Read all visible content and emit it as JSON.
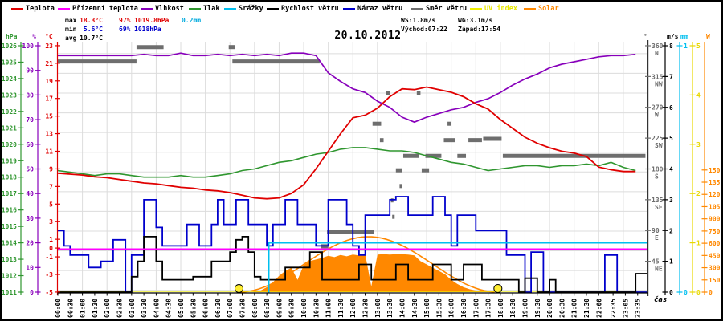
{
  "title": "20.10.2012",
  "legend": [
    {
      "label": "Teplota",
      "color": "#e00000",
      "label_color": "#000000"
    },
    {
      "label": "Přízemní teplota",
      "color": "#ff00ff",
      "label_color": "#000000"
    },
    {
      "label": "Vlhkost",
      "color": "#8800bb",
      "label_color": "#000000"
    },
    {
      "label": "Tlak",
      "color": "#2f962f",
      "label_color": "#000000"
    },
    {
      "label": "Srážky",
      "color": "#00bfef",
      "label_color": "#000000"
    },
    {
      "label": "Rychlost větru",
      "color": "#000000",
      "label_color": "#000000"
    },
    {
      "label": "Náraz větru",
      "color": "#0000cc",
      "label_color": "#000000"
    },
    {
      "label": "Směr větru",
      "color": "#6e6e6e",
      "label_color": "#000000"
    },
    {
      "label": "UV index",
      "color": "#f0f000",
      "label_color": "#e8e800"
    },
    {
      "label": "Solar",
      "color": "#ff8800",
      "label_color": "#ff8800"
    }
  ],
  "stats": {
    "max_label": "max",
    "max_temp": "18.3°C",
    "max_humidity": "97%",
    "max_pressure": "1019.8hPa",
    "max_precip": "0.2mm",
    "min_label": "min",
    "min_temp": "5.6°C",
    "min_humidity": "69%",
    "min_pressure": "1018hPa",
    "avg_label": "avg",
    "avg_temp": "10.7°C",
    "wind_speed_max": "WS:1.8m/s",
    "wind_gust_max": "WG:3.1m/s",
    "sunrise": "Východ:07:22",
    "sunset": "Západ:17:54"
  },
  "axes": {
    "pressure": {
      "unit": "hPa",
      "color": "#2f962f",
      "ticks": [
        1026,
        1025,
        1024,
        1023,
        1022,
        1021,
        1020,
        1019,
        1018,
        1017,
        1016,
        1015,
        1014,
        1013,
        1012,
        1011
      ]
    },
    "humidity": {
      "unit": "%",
      "color": "#8800bb",
      "ticks": [
        100,
        90,
        80,
        70,
        60,
        50,
        40,
        30,
        20,
        10,
        0
      ]
    },
    "temperature": {
      "unit": "°C",
      "color": "#e00000",
      "ticks": [
        23,
        21,
        19,
        17,
        15,
        13,
        11,
        9,
        7,
        5,
        3,
        1,
        0,
        -1,
        -3,
        -5
      ]
    },
    "direction": {
      "unit": "°",
      "color": "#6e6e6e",
      "ticks": [
        [
          360,
          "N"
        ],
        [
          315,
          "NW"
        ],
        [
          270,
          "W"
        ],
        [
          225,
          "SW"
        ],
        [
          180,
          "S"
        ],
        [
          135,
          "SE"
        ],
        [
          90,
          "E"
        ],
        [
          45,
          "NE"
        ]
      ]
    },
    "wind": {
      "unit": "m/s",
      "color": "#000000",
      "ticks": [
        8,
        7,
        6,
        5,
        4,
        3,
        2,
        1,
        0
      ]
    },
    "precip": {
      "unit": "mm",
      "color": "#00bfef",
      "ticks": [
        1,
        0
      ]
    },
    "uv": {
      "unit": "",
      "color": "#e8d800",
      "ticks": [
        5,
        4,
        3,
        2,
        1,
        0
      ]
    },
    "solar": {
      "unit": "W",
      "color": "#ff8800",
      "ticks": [
        1500,
        1350,
        1200,
        1050,
        900,
        750,
        600,
        450,
        300,
        150,
        0
      ]
    }
  },
  "x_axis": {
    "label": "čas",
    "ticks": [
      "00:00",
      "00:30",
      "01:00",
      "01:30",
      "02:00",
      "02:30",
      "03:00",
      "03:30",
      "04:00",
      "04:30",
      "05:00",
      "05:30",
      "06:00",
      "06:30",
      "07:00",
      "07:30",
      "08:00",
      "08:30",
      "09:00",
      "09:30",
      "10:00",
      "10:30",
      "11:00",
      "11:30",
      "12:00",
      "12:30",
      "13:00",
      "13:30",
      "14:00",
      "14:30",
      "15:00",
      "15:30",
      "16:00",
      "16:30",
      "17:00",
      "17:30",
      "18:00",
      "18:30",
      "19:00",
      "19:30",
      "20:00",
      "20:30",
      "21:00",
      "21:30",
      "22:00",
      "22:35",
      "23:05",
      "23:35"
    ]
  },
  "chart_data": {
    "type": "line",
    "title": "20.10.2012",
    "x_unit": "hours (0-24)",
    "sun": {
      "sunrise_hour": 7.367,
      "sunset_hour": 17.9,
      "sunrise": "07:22",
      "sunset": "17:54"
    },
    "series": [
      {
        "name": "Teplota",
        "unit": "°C",
        "color": "#e00000",
        "step_hours": 0.5,
        "values": [
          8.5,
          8.4,
          8.3,
          8.1,
          8.0,
          7.8,
          7.6,
          7.4,
          7.3,
          7.1,
          6.9,
          6.8,
          6.6,
          6.5,
          6.3,
          6.0,
          5.7,
          5.6,
          5.7,
          6.2,
          7.2,
          9.0,
          11.0,
          13.0,
          14.8,
          15.1,
          15.9,
          17.2,
          18.1,
          18.0,
          18.3,
          18.0,
          17.7,
          17.2,
          16.4,
          15.8,
          14.6,
          13.6,
          12.6,
          11.9,
          11.4,
          11.0,
          10.8,
          10.4,
          9.2,
          8.9,
          8.7,
          8.7
        ]
      },
      {
        "name": "Přízemní teplota",
        "unit": "°C",
        "color": "#ff00ff",
        "constant": -0.1
      },
      {
        "name": "Vlhkost",
        "unit": "%",
        "color": "#8800bb",
        "step_hours": 0.5,
        "values": [
          96,
          96,
          96,
          96,
          96,
          96,
          96,
          96.5,
          96,
          96,
          97,
          96,
          96,
          96.5,
          96,
          96.5,
          96,
          96.5,
          96,
          97,
          97,
          96,
          89,
          85.5,
          82.5,
          81,
          77.5,
          75,
          71,
          69,
          71,
          72.5,
          74,
          75,
          77,
          78.5,
          81,
          84,
          86.5,
          88.5,
          91,
          92.5,
          93.5,
          94.5,
          95.5,
          96,
          96,
          96.5
        ]
      },
      {
        "name": "Tlak",
        "unit": "hPa",
        "color": "#2f962f",
        "step_hours": 0.5,
        "values": [
          1018.4,
          1018.3,
          1018.2,
          1018.1,
          1018.2,
          1018.2,
          1018.1,
          1018.0,
          1018.0,
          1018.0,
          1018.1,
          1018.0,
          1018.0,
          1018.1,
          1018.2,
          1018.4,
          1018.5,
          1018.7,
          1018.9,
          1019.0,
          1019.2,
          1019.4,
          1019.5,
          1019.7,
          1019.8,
          1019.8,
          1019.7,
          1019.6,
          1019.6,
          1019.5,
          1019.3,
          1019.1,
          1018.9,
          1018.8,
          1018.6,
          1018.4,
          1018.5,
          1018.6,
          1018.7,
          1018.7,
          1018.6,
          1018.7,
          1018.7,
          1018.8,
          1018.7,
          1018.9,
          1018.6,
          1018.4
        ]
      },
      {
        "name": "Srážky",
        "unit": "mm",
        "color": "#00bfef",
        "cumulative_jump_hour": 8.58,
        "total": 0.2
      },
      {
        "name": "Rychlost větru",
        "unit": "m/s",
        "color": "#000000",
        "step_hours": 0.25,
        "values": [
          0,
          0,
          0,
          0,
          0,
          0,
          0,
          0,
          0,
          0,
          0,
          0,
          0.5,
          1.0,
          1.8,
          1.8,
          1.0,
          0.4,
          0.4,
          0.4,
          0.4,
          0.4,
          0.5,
          0.5,
          0.5,
          1.0,
          1.0,
          1.0,
          1.3,
          1.7,
          1.8,
          1.3,
          0.5,
          0.4,
          0.4,
          0.4,
          0.4,
          0.8,
          0.8,
          0.8,
          0.8,
          1.3,
          1.3,
          0.4,
          0.4,
          0.4,
          0.4,
          0.4,
          0.4,
          0.9,
          0.9,
          0.4,
          0.4,
          0.4,
          0.4,
          0.9,
          0.9,
          0.4,
          0.4,
          0.4,
          0.4,
          0.9,
          0.9,
          0.9,
          0.4,
          0.4,
          0.9,
          0.9,
          0.9,
          0.4,
          0.4,
          0.4,
          0.4,
          0.4,
          0.4,
          0,
          0.45,
          0.45,
          0,
          0,
          0.4,
          0,
          0,
          0,
          0,
          0,
          0,
          0,
          0,
          0,
          0,
          0,
          0,
          0,
          0.6,
          0.6
        ]
      },
      {
        "name": "Náraz větru",
        "unit": "m/s",
        "color": "#0000cc",
        "step_hours": 0.25,
        "values": [
          2.0,
          1.5,
          1.2,
          1.2,
          1.2,
          0.8,
          0.8,
          1.0,
          1.0,
          1.7,
          1.7,
          0,
          1.2,
          1.2,
          3.0,
          3.0,
          2.1,
          1.5,
          1.5,
          1.5,
          1.5,
          2.2,
          2.2,
          1.5,
          1.5,
          2.2,
          3.0,
          2.2,
          2.2,
          3.0,
          3.0,
          2.2,
          2.2,
          2.2,
          1.5,
          2.2,
          2.2,
          3.0,
          3.0,
          2.2,
          2.2,
          2.2,
          1.5,
          1.5,
          3.0,
          3.0,
          3.0,
          2.2,
          1.5,
          1.2,
          2.5,
          2.5,
          2.5,
          2.5,
          3.0,
          3.1,
          3.1,
          2.5,
          2.5,
          2.5,
          2.5,
          3.1,
          3.1,
          2.5,
          1.5,
          2.5,
          2.5,
          2.5,
          2.0,
          2.0,
          2.0,
          2.0,
          2.0,
          1.2,
          1.2,
          1.2,
          0,
          1.3,
          1.3,
          0,
          0,
          0,
          0,
          0,
          0,
          0,
          0,
          0,
          0,
          1.2,
          1.2,
          0,
          0,
          0,
          0,
          0
        ]
      },
      {
        "name": "Směr větru",
        "unit": "°",
        "color": "#6e6e6e",
        "segments": [
          [
            0.0,
            3.2,
            337
          ],
          [
            3.2,
            4.3,
            358
          ],
          [
            6.95,
            7.2,
            358
          ],
          [
            7.1,
            10.65,
            337
          ],
          [
            10.7,
            11.0,
            67
          ],
          [
            10.95,
            12.85,
            88
          ],
          [
            12.8,
            13.15,
            246
          ],
          [
            15.85,
            16.0,
            246
          ],
          [
            13.35,
            13.5,
            291
          ],
          [
            14.6,
            14.75,
            291
          ],
          [
            13.1,
            13.25,
            222
          ],
          [
            15.7,
            16.15,
            222
          ],
          [
            16.7,
            17.25,
            222
          ],
          [
            17.3,
            18.05,
            224
          ],
          [
            14.05,
            14.7,
            199
          ],
          [
            14.95,
            15.6,
            199
          ],
          [
            16.25,
            16.6,
            199
          ],
          [
            18.1,
            23.9,
            199
          ],
          [
            13.75,
            14.0,
            178
          ],
          [
            14.8,
            15.1,
            178
          ],
          [
            13.9,
            14.0,
            155
          ],
          [
            13.55,
            13.65,
            134
          ],
          [
            13.6,
            13.7,
            110
          ]
        ]
      },
      {
        "name": "UV index",
        "unit": "",
        "color": "#f0f000",
        "constant": 0.02
      },
      {
        "name": "Solar",
        "unit": "W",
        "color": "#ff8800",
        "step_hours": 0.25,
        "clear_sky": {
          "start": 7.367,
          "end": 17.9,
          "peak": 680
        },
        "values": [
          0,
          0,
          0,
          0,
          0,
          0,
          0,
          0,
          0,
          0,
          0,
          0,
          0,
          0,
          0,
          0,
          0,
          0,
          0,
          0,
          0,
          0,
          0,
          0,
          0,
          0,
          0,
          0,
          0,
          0,
          0,
          0,
          5,
          20,
          60,
          120,
          200,
          260,
          300,
          150,
          330,
          380,
          400,
          420,
          445,
          430,
          455,
          440,
          460,
          450,
          465,
          70,
          460,
          465,
          460,
          465,
          465,
          460,
          450,
          380,
          340,
          300,
          260,
          220,
          150,
          100,
          60,
          35,
          20,
          10,
          5,
          2,
          0,
          0,
          0,
          0,
          0,
          0,
          0,
          0,
          0,
          0,
          0,
          0,
          0,
          0,
          0,
          0,
          0,
          0,
          0,
          0,
          0,
          0,
          0,
          0
        ]
      }
    ]
  }
}
